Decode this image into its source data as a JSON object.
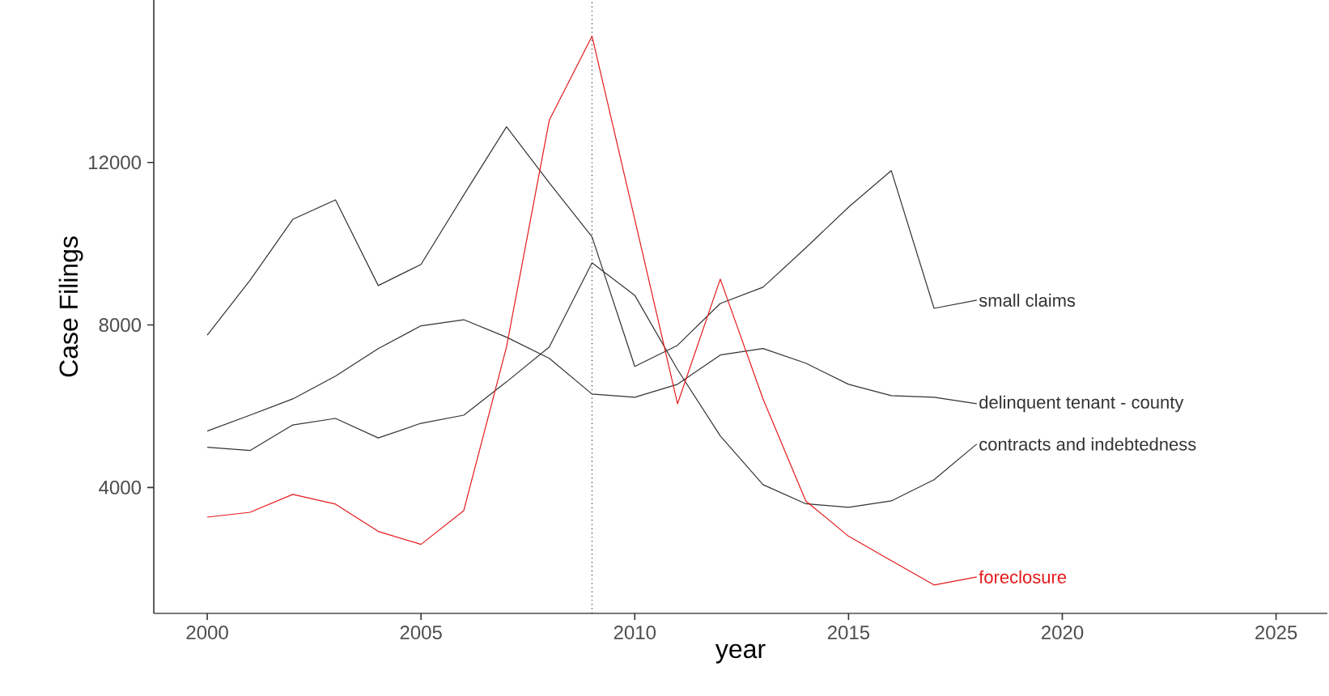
{
  "chart_data": {
    "type": "line",
    "xlabel": "year",
    "ylabel": "Case Filings",
    "x": [
      2000,
      2001,
      2002,
      2003,
      2004,
      2005,
      2006,
      2007,
      2008,
      2009,
      2010,
      2011,
      2012,
      2013,
      2014,
      2015,
      2016,
      2017,
      2018
    ],
    "series": [
      {
        "name": "small claims",
        "color": "#333333",
        "values": [
          7750,
          9100,
          10600,
          11080,
          8970,
          9490,
          11200,
          12880,
          11500,
          10170,
          6980,
          7500,
          8530,
          8930,
          9900,
          10900,
          11800,
          8410,
          8610
        ]
      },
      {
        "name": "delinquent tenant - county",
        "color": "#333333",
        "values": [
          5390,
          5780,
          6180,
          6740,
          7420,
          7980,
          8130,
          7700,
          7180,
          6300,
          6220,
          6540,
          7260,
          7420,
          7060,
          6540,
          6260,
          6220,
          6060
        ]
      },
      {
        "name": "contracts and indebtedness",
        "color": "#333333",
        "values": [
          4990,
          4910,
          5540,
          5700,
          5220,
          5580,
          5780,
          6600,
          7460,
          9530,
          8730,
          6900,
          5270,
          4070,
          3600,
          3510,
          3670,
          4190,
          5070
        ]
      },
      {
        "name": "foreclosure",
        "color": "#e41a1c",
        "values": [
          3270,
          3390,
          3830,
          3590,
          2920,
          2600,
          3430,
          7460,
          13040,
          15110,
          10600,
          6060,
          9130,
          6180,
          3670,
          2800,
          2200,
          1600,
          1800
        ]
      }
    ],
    "ref_lines": [
      {
        "axis": "x",
        "value": 2009,
        "line_style": "dotted",
        "color": "#333333"
      }
    ],
    "xlim": [
      1998.75,
      2026.2
    ],
    "ylim": [
      900,
      16000
    ],
    "xticks": [
      2000,
      2005,
      2010,
      2015,
      2020,
      2025
    ],
    "yticks": [
      4000,
      8000,
      12000
    ],
    "marker": "none",
    "line_style": "solid"
  }
}
